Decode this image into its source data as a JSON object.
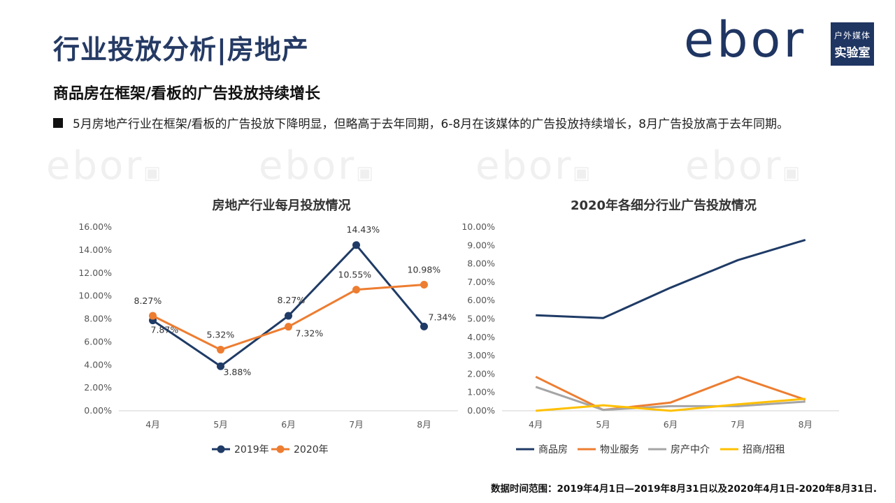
{
  "page": {
    "title": "行业投放分析|房地产",
    "subtitle": "商品房在框架/看板的广告投放持续增长",
    "bullet": "5月房地产行业在框架/看板的广告投放下降明显，但略高于去年同期，6-8月在该媒体的广告投放持续增长，8月广告投放高于去年同期。",
    "footnote": "数据时间范围：2019年4月1日—2019年8月31日以及2020年4月1日-2020年8月31日."
  },
  "logo": {
    "brand": "ebor",
    "tag_top": "户外媒体",
    "tag_bottom": "实验室"
  },
  "colors": {
    "title": "#253a64",
    "navy": "#1f3b66",
    "orange": "#ed7d31",
    "gray": "#a5a5a5",
    "yellow": "#ffc000"
  },
  "chart_data": [
    {
      "type": "line",
      "title": "房地产行业每月投放情况",
      "categories": [
        "4月",
        "5月",
        "6月",
        "7月",
        "8月"
      ],
      "ylim": [
        0,
        16
      ],
      "yticks": [
        "0.00%",
        "2.00%",
        "4.00%",
        "6.00%",
        "8.00%",
        "10.00%",
        "12.00%",
        "14.00%",
        "16.00%"
      ],
      "series": [
        {
          "name": "2019年",
          "color": "#1f3b66",
          "values": [
            7.87,
            3.88,
            8.27,
            14.43,
            7.34
          ],
          "labels": [
            "7.87%",
            "3.88%",
            "8.27%",
            "14.43%",
            "7.34%"
          ]
        },
        {
          "name": "2020年",
          "color": "#ed7d31",
          "values": [
            8.27,
            5.32,
            7.32,
            10.55,
            10.98
          ],
          "labels": [
            "8.27%",
            "5.32%",
            "7.32%",
            "10.55%",
            "10.98%"
          ]
        }
      ],
      "legend": "bottom"
    },
    {
      "type": "line",
      "title": "2020年各细分行业广告投放情况",
      "categories": [
        "4月",
        "5月",
        "6月",
        "7月",
        "8月"
      ],
      "ylim": [
        0,
        10
      ],
      "yticks": [
        "0.00%",
        "1.00%",
        "2.00%",
        "3.00%",
        "4.00%",
        "5.00%",
        "6.00%",
        "7.00%",
        "8.00%",
        "9.00%",
        "10.00%"
      ],
      "series": [
        {
          "name": "商品房",
          "color": "#1f3b66",
          "values": [
            5.2,
            5.05,
            6.7,
            8.2,
            9.3
          ]
        },
        {
          "name": "物业服务",
          "color": "#ed7d31",
          "values": [
            1.85,
            0.05,
            0.45,
            1.85,
            0.6
          ]
        },
        {
          "name": "房产中介",
          "color": "#a5a5a5",
          "values": [
            1.3,
            0.05,
            0.25,
            0.25,
            0.5
          ]
        },
        {
          "name": "招商/招租",
          "color": "#ffc000",
          "values": [
            0.0,
            0.3,
            0.0,
            0.35,
            0.65
          ]
        }
      ],
      "legend": "bottom"
    }
  ]
}
